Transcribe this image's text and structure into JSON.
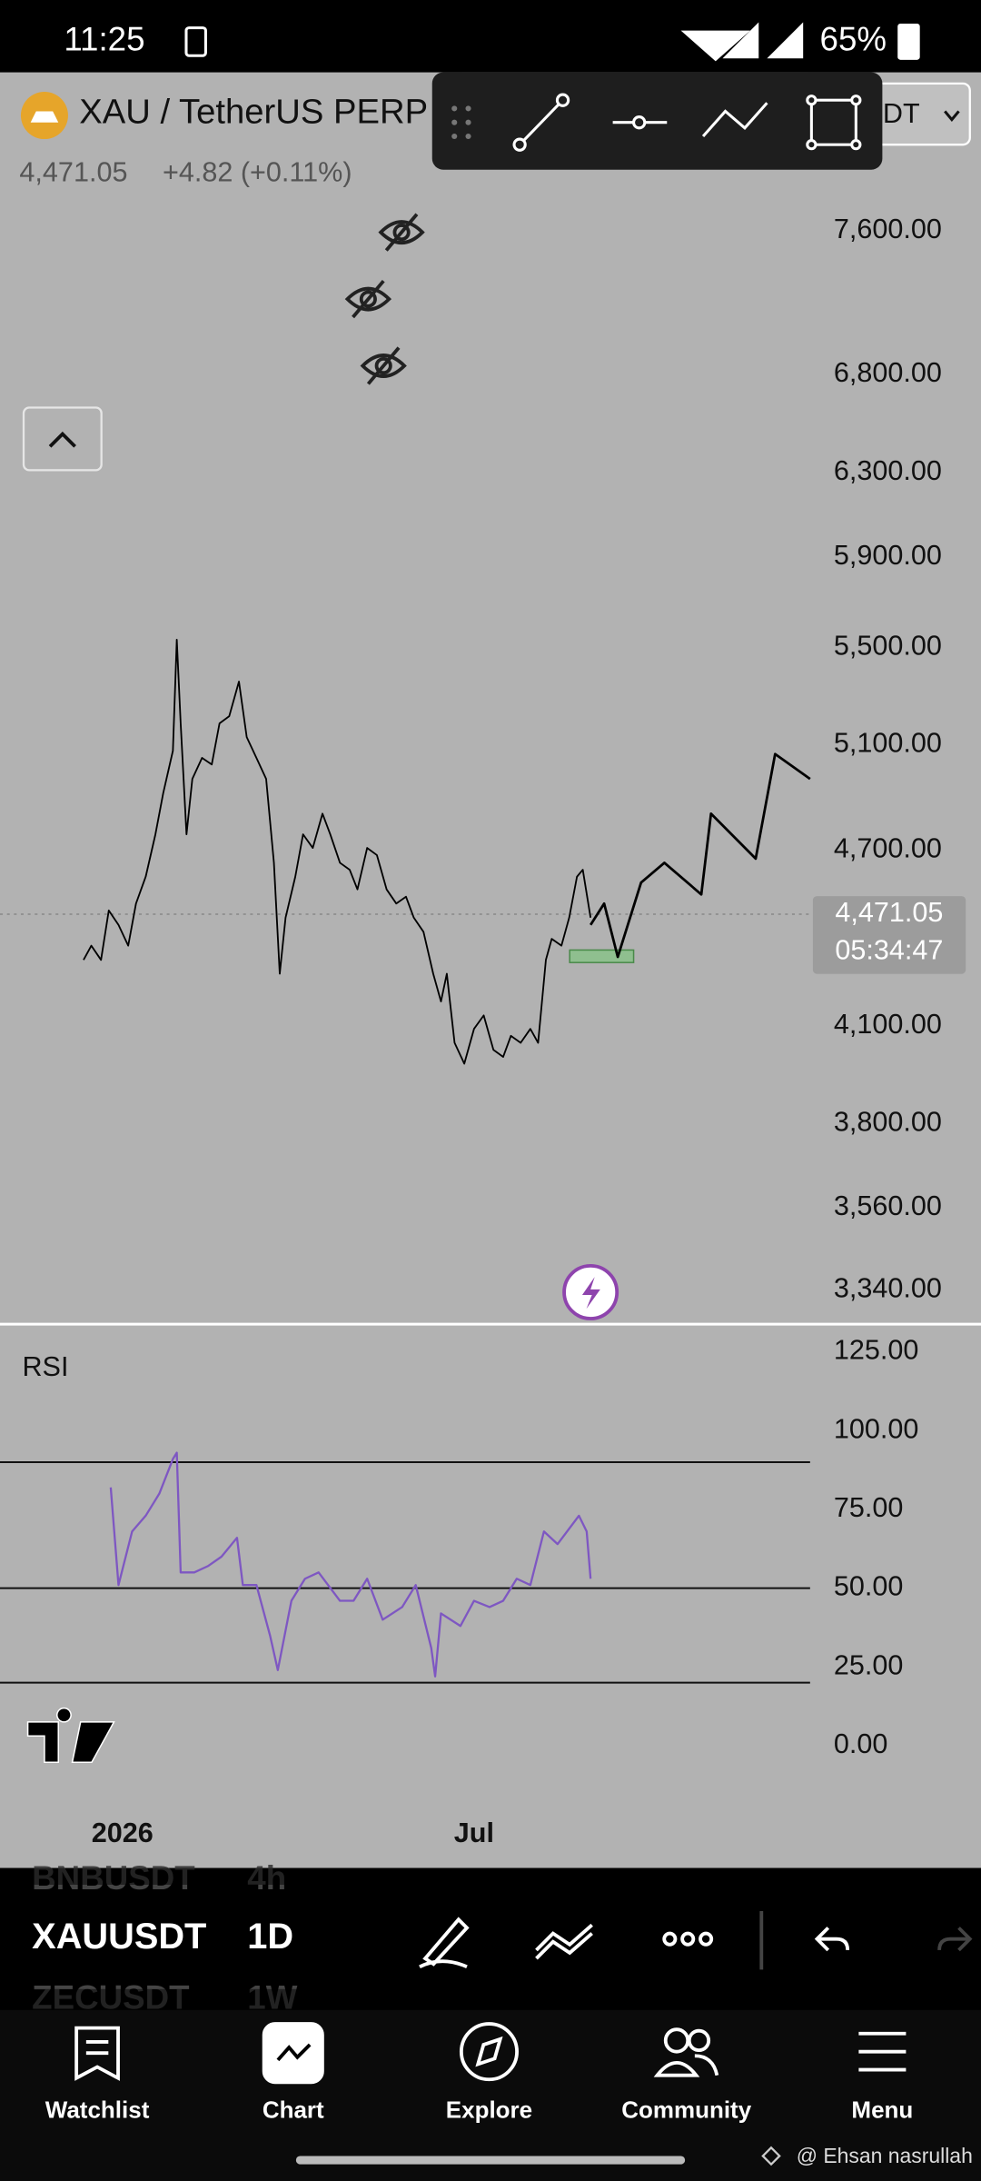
{
  "status_bar": {
    "time": "11:25",
    "battery": "65%"
  },
  "header": {
    "symbol": "XAU / TetherUS PERP",
    "price": "4,471.05",
    "change": "+4.82 (+0.11%)",
    "currency": "USDT"
  },
  "chart_data": [
    {
      "type": "line",
      "log_scale": true,
      "xlim": [
        -43,
        374
      ],
      "ylim": [
        3259,
        8596
      ],
      "yticks": [
        {
          "value": 7600,
          "label": "7,600.00"
        },
        {
          "value": 6800,
          "label": "6,800.00"
        },
        {
          "value": 6300,
          "label": "6,300.00"
        },
        {
          "value": 5900,
          "label": "5,900.00"
        },
        {
          "value": 5500,
          "label": "5,500.00"
        },
        {
          "value": 5100,
          "label": "5,100.00"
        },
        {
          "value": 4700,
          "label": "4,700.00"
        },
        {
          "value": 4100,
          "label": "4,100.00"
        },
        {
          "value": 3800,
          "label": "3,800.00"
        },
        {
          "value": 3560,
          "label": "3,560.00"
        },
        {
          "value": 3340,
          "label": "3,340.00"
        }
      ],
      "xticks": [
        {
          "value": 20,
          "label": "2026"
        },
        {
          "value": 201,
          "label": "Jul"
        }
      ],
      "current_price": {
        "value": 4471.05,
        "label": "4,471.05",
        "countdown": "05:34:47"
      },
      "series": [
        {
          "color": "#000000",
          "x": [
            0,
            4,
            9,
            13,
            18,
            23,
            27,
            32,
            37,
            41,
            46,
            48,
            50,
            53,
            56,
            61,
            66,
            70,
            75,
            80,
            84,
            89,
            94,
            98,
            101,
            104,
            109,
            113,
            118,
            123,
            127,
            132,
            137,
            141,
            146,
            151,
            156,
            161,
            166,
            170,
            175,
            180,
            184,
            187,
            191,
            196,
            201,
            206,
            211,
            216,
            220,
            225,
            230,
            234,
            238,
            241,
            246,
            250,
            254,
            257,
            261
          ],
          "values": [
            4315,
            4363,
            4315,
            4484,
            4434,
            4363,
            4508,
            4603,
            4757,
            4911,
            5076,
            5533,
            5185,
            4757,
            4966,
            5048,
            5022,
            5185,
            5214,
            5356,
            5130,
            5048,
            4966,
            4653,
            4269,
            4459,
            4603,
            4757,
            4707,
            4834,
            4757,
            4653,
            4628,
            4558,
            4707,
            4681,
            4558,
            4508,
            4532,
            4459,
            4410,
            4269,
            4178,
            4269,
            4046,
            3981,
            4090,
            4133,
            4024,
            4002,
            4068,
            4046,
            4090,
            4046,
            4315,
            4386,
            4363,
            4459,
            4603,
            4628,
            4459
          ]
        },
        {
          "color": "#000000",
          "x": [
            261,
            268,
            275,
            287,
            299,
            318,
            323,
            346,
            356,
            374
          ],
          "values": [
            4434,
            4508,
            4325,
            4582,
            4653,
            4540,
            4834,
            4668,
            5063,
            4966
          ]
        }
      ]
    },
    {
      "type": "line",
      "title": "RSI",
      "color": "#7e57c2",
      "xlim": [
        -43,
        374
      ],
      "ylim": [
        -37.5,
        133.8
      ],
      "yticks": [
        {
          "value": 125,
          "label": "125.00"
        },
        {
          "value": 100,
          "label": "100.00"
        },
        {
          "value": 75,
          "label": "75.00"
        },
        {
          "value": 50,
          "label": "50.00"
        },
        {
          "value": 25,
          "label": "25.00"
        },
        {
          "value": 0,
          "label": "0.00"
        }
      ],
      "levels": [
        90,
        50,
        20
      ],
      "x": [
        14,
        18,
        25,
        32,
        39,
        46,
        48,
        50,
        57,
        64,
        71,
        79,
        82,
        89,
        96,
        100,
        107,
        114,
        121,
        132,
        139,
        146,
        154,
        164,
        171,
        179,
        181,
        184,
        194,
        201,
        209,
        216,
        223,
        230,
        237,
        244,
        255,
        259,
        261
      ],
      "values": [
        82,
        51,
        68,
        73,
        80,
        91,
        93,
        55,
        55,
        57,
        60,
        66,
        51,
        51,
        35,
        24,
        46,
        53,
        55,
        46,
        46,
        53,
        40,
        44,
        51,
        31,
        22,
        42,
        38,
        46,
        44,
        46,
        53,
        51,
        68,
        64,
        73,
        68,
        53
      ]
    }
  ],
  "symbol_bar": {
    "prev": {
      "symbol": "BNBUSDT",
      "interval": "4h"
    },
    "current": {
      "symbol": "XAUUSDT",
      "interval": "1D"
    },
    "next": {
      "symbol": "ZECUSDT",
      "interval": "1W"
    }
  },
  "nav": [
    "Watchlist",
    "Chart",
    "Explore",
    "Community",
    "Menu"
  ],
  "watermark": "@ Ehsan nasrullah"
}
